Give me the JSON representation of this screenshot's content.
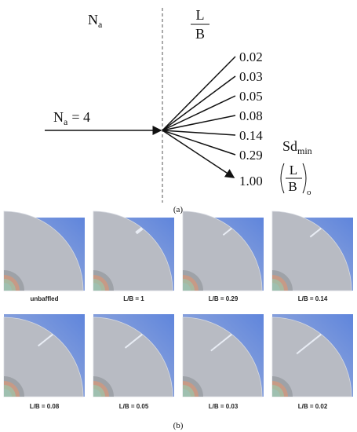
{
  "panel_a": {
    "label": "(a)",
    "header_left": {
      "symbol": "N",
      "subscript": "a"
    },
    "header_right": {
      "numerator": "L",
      "denominator": "B"
    },
    "input": {
      "symbol": "N",
      "subscript": "a",
      "rest": "= 4"
    },
    "ratios": [
      "0.02",
      "0.03",
      "0.05",
      "0.08",
      "0.14",
      "0.29",
      "1.00"
    ],
    "sd": {
      "symbol": "Sd",
      "subscript": "min"
    },
    "optimal": {
      "numerator": "L",
      "denominator": "B",
      "subscript": "o"
    }
  },
  "panel_b": {
    "label": "(b)",
    "captions": [
      "unbaffled",
      "L/B = 1",
      "L/B = 0.29",
      "L/B = 0.14",
      "L/B = 0.08",
      "L/B = 0.05",
      "L/B = 0.03",
      "L/B = 0.02"
    ]
  }
}
